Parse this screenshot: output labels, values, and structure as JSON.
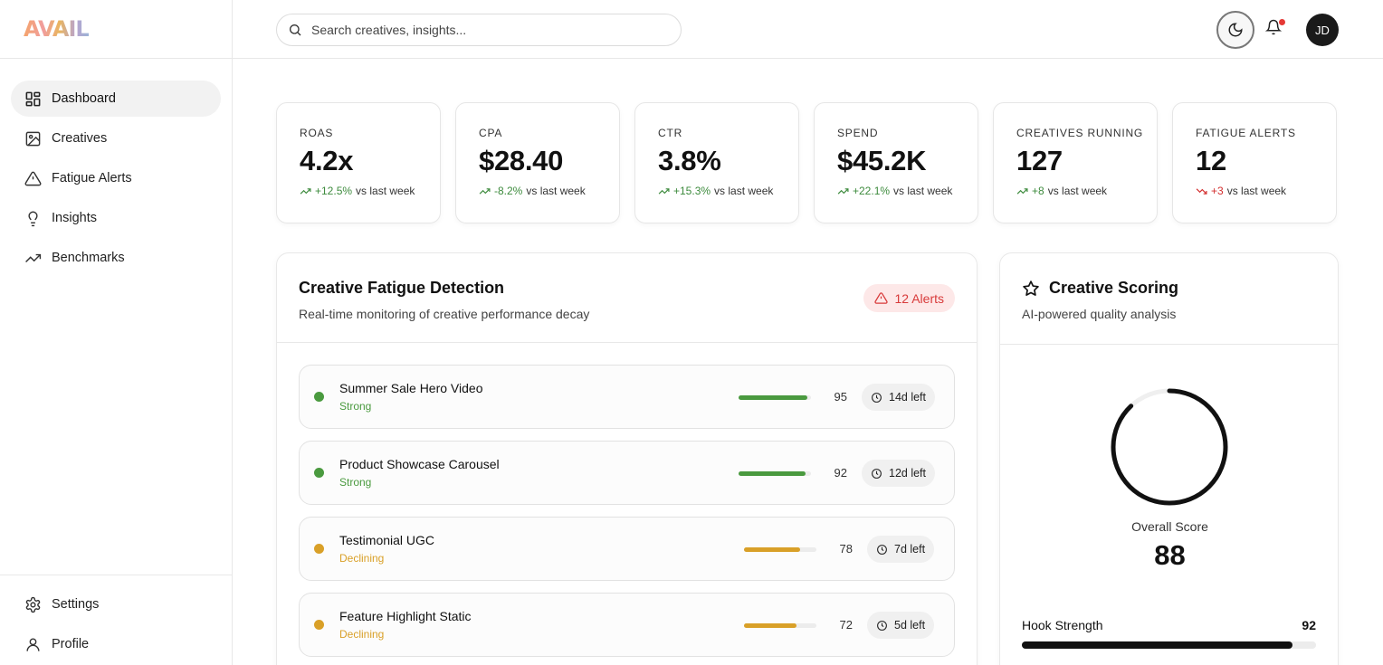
{
  "app": {
    "logo": "AVAIL"
  },
  "sidebar": {
    "items": [
      {
        "label": "Dashboard",
        "icon": "dashboard-icon",
        "active": true
      },
      {
        "label": "Creatives",
        "icon": "image-icon"
      },
      {
        "label": "Fatigue Alerts",
        "icon": "warning-icon"
      },
      {
        "label": "Insights",
        "icon": "lightbulb-icon"
      },
      {
        "label": "Benchmarks",
        "icon": "trending-up-icon"
      }
    ],
    "bottom": [
      {
        "label": "Settings",
        "icon": "gear-icon"
      },
      {
        "label": "Profile",
        "icon": "user-icon"
      }
    ]
  },
  "header": {
    "search_placeholder": "Search creatives, insights...",
    "avatar_initials": "JD"
  },
  "kpis": [
    {
      "label": "ROAS",
      "value": "4.2x",
      "delta": "+12.5%",
      "suffix": "vs last week",
      "trend": "up"
    },
    {
      "label": "CPA",
      "value": "$28.40",
      "delta": "-8.2%",
      "suffix": "vs last week",
      "trend": "up"
    },
    {
      "label": "CTR",
      "value": "3.8%",
      "delta": "+15.3%",
      "suffix": "vs last week",
      "trend": "up"
    },
    {
      "label": "SPEND",
      "value": "$45.2K",
      "delta": "+22.1%",
      "suffix": "vs last week",
      "trend": "up"
    },
    {
      "label": "CREATIVES RUNNING",
      "value": "127",
      "delta": "+8",
      "suffix": "vs last week",
      "trend": "up"
    },
    {
      "label": "FATIGUE ALERTS",
      "value": "12",
      "delta": "+3",
      "suffix": "vs last week",
      "trend": "down"
    }
  ],
  "fatigue": {
    "title": "Creative Fatigue Detection",
    "subtitle": "Real-time monitoring of creative performance decay",
    "badge": "12 Alerts",
    "rows": [
      {
        "name": "Summer Sale Hero Video",
        "status": "Strong",
        "score": "95",
        "score_fraction": 0.95,
        "days": "14d left",
        "color": "#4a9a3f"
      },
      {
        "name": "Product Showcase Carousel",
        "status": "Strong",
        "score": "92",
        "score_fraction": 0.92,
        "days": "12d left",
        "color": "#4a9a3f"
      },
      {
        "name": "Testimonial UGC",
        "status": "Declining",
        "score": "78",
        "score_fraction": 0.78,
        "days": "7d left",
        "color": "#d9a028"
      },
      {
        "name": "Feature Highlight Static",
        "status": "Declining",
        "score": "72",
        "score_fraction": 0.72,
        "days": "5d left",
        "color": "#d9a028"
      }
    ]
  },
  "scoring": {
    "title": "Creative Scoring",
    "subtitle": "AI-powered quality analysis",
    "overall_label": "Overall Score",
    "overall_value": "88",
    "overall_fraction": 0.88,
    "metrics": [
      {
        "label": "Hook Strength",
        "value": "92",
        "fraction": 0.92
      }
    ]
  },
  "colors": {
    "up": "#3d8b3d",
    "down": "#d32f2f",
    "alert_bg": "#fde8e8",
    "alert_fg": "#d83a3a"
  }
}
